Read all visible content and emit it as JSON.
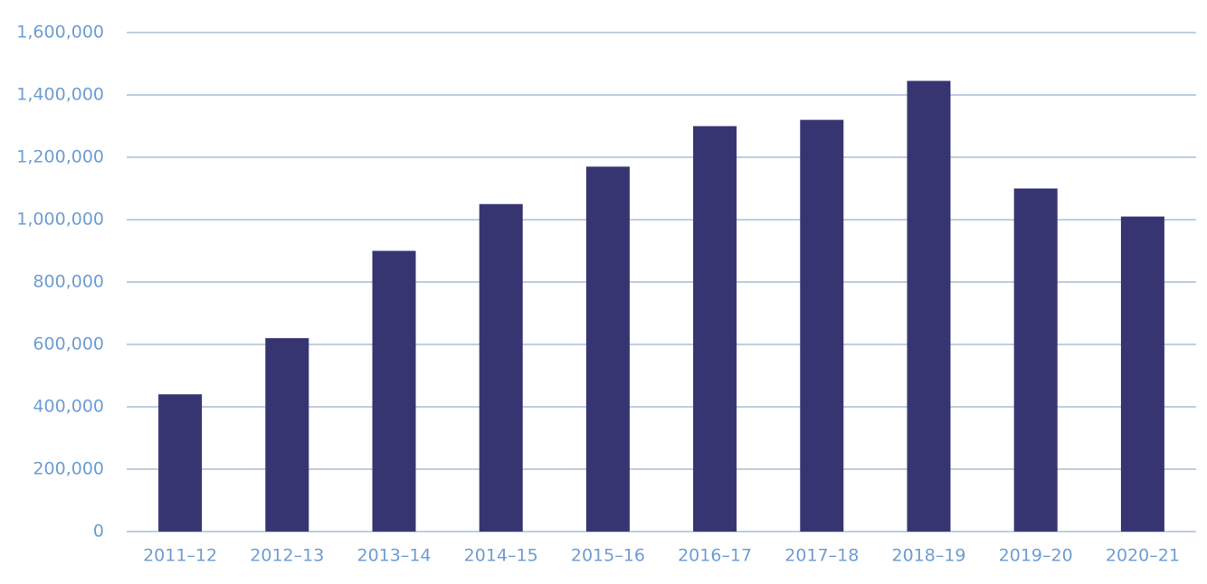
{
  "chart_data": {
    "type": "bar",
    "categories": [
      "2011–12",
      "2012–13",
      "2013–14",
      "2014–15",
      "2015–16",
      "2016–17",
      "2017–18",
      "2018–19",
      "2019–20",
      "2020–21"
    ],
    "values": [
      440000,
      620000,
      900000,
      1050000,
      1170000,
      1300000,
      1320000,
      1445000,
      1100000,
      1010000
    ],
    "color": "#373472",
    "ylim": [
      0,
      1600000
    ],
    "yticks": [
      0,
      {
        "value": 200000,
        "label": "200,000"
      },
      {
        "value": 400000,
        "label": "400,000"
      },
      {
        "value": 600000,
        "label": "600,000"
      },
      {
        "value": 800000,
        "label": "800,000"
      },
      {
        "value": 1000000,
        "label": "1,000,000"
      },
      {
        "value": 1200000,
        "label": "1,200,000"
      },
      {
        "value": 1400000,
        "label": "1,400,000"
      },
      {
        "value": 1600000,
        "label": "1,600,000"
      }
    ],
    "grid": true
  }
}
